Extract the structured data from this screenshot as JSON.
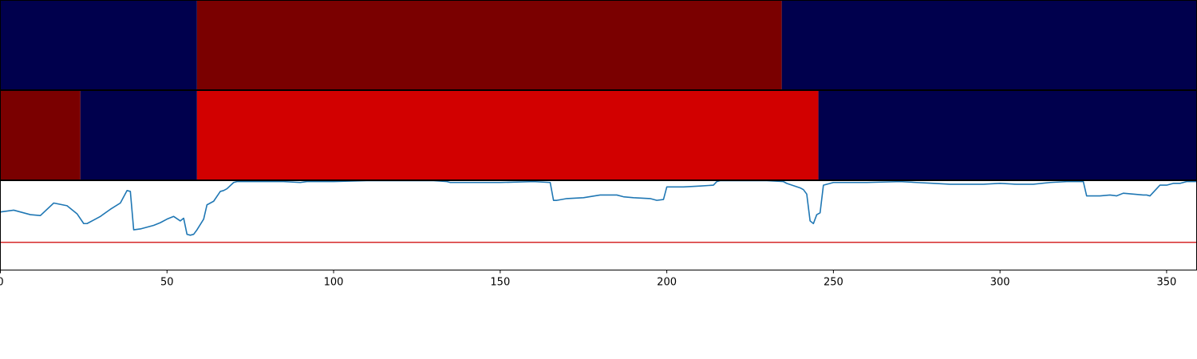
{
  "chart_data": [
    {
      "type": "heatmap",
      "title": "",
      "xlabel": "",
      "ylabel": "",
      "xlim": [
        0,
        359
      ],
      "segments": [
        {
          "start": 0,
          "end": 59,
          "color": "#00004d"
        },
        {
          "start": 59,
          "end": 234.5,
          "color": "#7a0000"
        },
        {
          "start": 234.5,
          "end": 359,
          "color": "#00004d"
        }
      ]
    },
    {
      "type": "heatmap",
      "title": "",
      "xlabel": "",
      "ylabel": "",
      "xlim": [
        0,
        359
      ],
      "segments": [
        {
          "start": 0,
          "end": 24,
          "color": "#7a0000"
        },
        {
          "start": 24,
          "end": 59,
          "color": "#00004d"
        },
        {
          "start": 59,
          "end": 245.5,
          "color": "#d20000"
        },
        {
          "start": 245.5,
          "end": 359,
          "color": "#00004d"
        }
      ]
    },
    {
      "type": "line",
      "title": "",
      "xlabel": "",
      "ylabel": "",
      "xlim": [
        0,
        359
      ],
      "ylim": [
        0,
        1
      ],
      "x_ticks": [
        "0",
        "50",
        "100",
        "150",
        "200",
        "250",
        "300",
        "350"
      ],
      "x_tick_values": [
        0,
        50,
        100,
        150,
        200,
        250,
        300,
        350
      ],
      "threshold": {
        "value": 0.31,
        "color": "#d62728"
      },
      "series": [
        {
          "color": "#1f77b4",
          "x": [
            0,
            4,
            6,
            9,
            12,
            16,
            20,
            23,
            25,
            26,
            28,
            30,
            33,
            36,
            38,
            39,
            40,
            42,
            44,
            46,
            48,
            50,
            52,
            54,
            55,
            56,
            57,
            58,
            59,
            61,
            62,
            63,
            64,
            66,
            67,
            68,
            70,
            71,
            73,
            75,
            80,
            85,
            90,
            92,
            95,
            100,
            110,
            120,
            130,
            134,
            135,
            140,
            150,
            160,
            165,
            166,
            167,
            170,
            175,
            180,
            185,
            187,
            190,
            195,
            197,
            199,
            200,
            201,
            205,
            210,
            214,
            215,
            216,
            220,
            225,
            230,
            235,
            236,
            240,
            241,
            242,
            243,
            244,
            245,
            246,
            247,
            248,
            250,
            260,
            270,
            275,
            280,
            285,
            290,
            295,
            300,
            305,
            310,
            315,
            320,
            325,
            326,
            327,
            330,
            333,
            335,
            337,
            340,
            343,
            344,
            345,
            348,
            350,
            352,
            354,
            355,
            356,
            357,
            358,
            359
          ],
          "y": [
            0.65,
            0.67,
            0.65,
            0.62,
            0.61,
            0.75,
            0.72,
            0.63,
            0.52,
            0.52,
            0.56,
            0.6,
            0.68,
            0.75,
            0.89,
            0.88,
            0.45,
            0.46,
            0.48,
            0.5,
            0.53,
            0.57,
            0.6,
            0.55,
            0.58,
            0.4,
            0.39,
            0.4,
            0.45,
            0.57,
            0.73,
            0.75,
            0.77,
            0.88,
            0.89,
            0.91,
            0.98,
            0.99,
            0.99,
            0.99,
            0.99,
            0.99,
            0.98,
            0.99,
            0.99,
            0.99,
            1.0,
            1.0,
            1.0,
            0.99,
            0.98,
            0.98,
            0.98,
            0.99,
            0.98,
            0.78,
            0.78,
            0.8,
            0.81,
            0.84,
            0.84,
            0.82,
            0.81,
            0.8,
            0.78,
            0.79,
            0.93,
            0.93,
            0.93,
            0.94,
            0.95,
            0.99,
            1.0,
            1.0,
            1.0,
            1.0,
            0.99,
            0.97,
            0.92,
            0.9,
            0.85,
            0.55,
            0.52,
            0.62,
            0.64,
            0.95,
            0.96,
            0.98,
            0.98,
            0.99,
            0.98,
            0.97,
            0.96,
            0.96,
            0.96,
            0.97,
            0.96,
            0.96,
            0.98,
            0.99,
            0.99,
            0.83,
            0.83,
            0.83,
            0.84,
            0.83,
            0.86,
            0.85,
            0.84,
            0.84,
            0.83,
            0.95,
            0.95,
            0.97,
            0.97,
            0.98,
            0.99,
            0.99,
            0.99,
            0.99
          ]
        }
      ]
    }
  ]
}
